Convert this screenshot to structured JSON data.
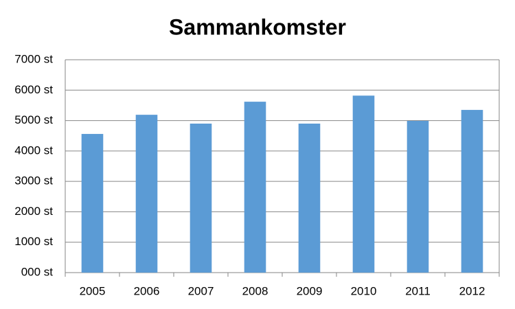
{
  "chart_data": {
    "type": "bar",
    "title": "Sammankomster",
    "categories": [
      "2005",
      "2006",
      "2007",
      "2008",
      "2009",
      "2010",
      "2011",
      "2012"
    ],
    "values": [
      4560,
      5190,
      4900,
      5620,
      4900,
      5820,
      4990,
      5350
    ],
    "color": "#5b9bd5",
    "ylim": [
      0,
      7000
    ],
    "yticks": [
      {
        "value": 0,
        "label": "000 st"
      },
      {
        "value": 1000,
        "label": "1000 st"
      },
      {
        "value": 2000,
        "label": "2000 st"
      },
      {
        "value": 3000,
        "label": "3000 st"
      },
      {
        "value": 4000,
        "label": "4000 st"
      },
      {
        "value": 5000,
        "label": "5000 st"
      },
      {
        "value": 6000,
        "label": "6000 st"
      },
      {
        "value": 7000,
        "label": "7000 st"
      }
    ],
    "grid": true
  }
}
